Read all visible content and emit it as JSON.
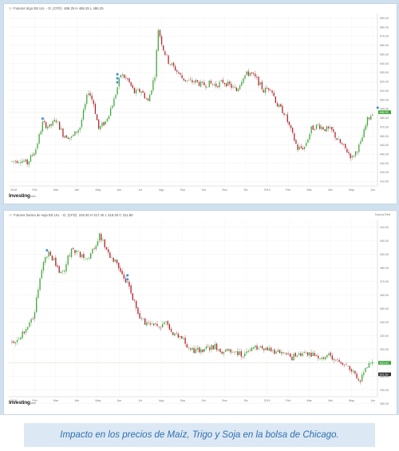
{
  "caption": "Impacto en los precios de Maíz, Trigo y Soja en la bolsa de Chicago.",
  "colors": {
    "up": "#3fa63a",
    "down": "#b0222a",
    "tag_green": "#3fa63a",
    "tag_dark": "#333333",
    "marker": "#4e8fd6",
    "frame": "#cfe0ef",
    "caption_text": "#2f6fae"
  },
  "chart_data": [
    {
      "type": "candlestick",
      "header": "Futuros trigo EE.UU. - D, (CFD)",
      "ohlc_text": "486.25 H 486.25 L 486.25",
      "brand": "Investing",
      "brand_suffix": ".com",
      "x_tick_labels": [
        "2018",
        "Feb",
        "Mar",
        "Abr",
        "May",
        "Jun",
        "Jul",
        "Ago",
        "Sep",
        "Oct",
        "Nov",
        "Dic",
        "2019",
        "Feb",
        "Mar",
        "Abr",
        "May",
        "Jun"
      ],
      "y_tick_labels": [
        "590.00",
        "580.00",
        "570.00",
        "560.00",
        "550.00",
        "540.00",
        "530.00",
        "520.00",
        "510.00",
        "500.00",
        "490.00",
        "480.00",
        "470.00",
        "460.00",
        "450.00",
        "440.00",
        "430.00",
        "420.00",
        "410.00"
      ],
      "ylim": [
        405,
        595
      ],
      "last_price": "486.25",
      "secondary_tag": "",
      "events": [
        {
          "index": 18,
          "stack": 1
        },
        {
          "index": 62,
          "stack": 3
        },
        {
          "index": 215,
          "stack": 1
        }
      ],
      "trend": [
        [
          0,
          432
        ],
        [
          5,
          434
        ],
        [
          9,
          430
        ],
        [
          14,
          446
        ],
        [
          18,
          474
        ],
        [
          22,
          470
        ],
        [
          26,
          478
        ],
        [
          30,
          462
        ],
        [
          35,
          458
        ],
        [
          40,
          470
        ],
        [
          45,
          510
        ],
        [
          48,
          496
        ],
        [
          51,
          468
        ],
        [
          55,
          476
        ],
        [
          60,
          500
        ],
        [
          64,
          528
        ],
        [
          68,
          522
        ],
        [
          72,
          508
        ],
        [
          76,
          510
        ],
        [
          80,
          498
        ],
        [
          84,
          528
        ],
        [
          86,
          578
        ],
        [
          89,
          556
        ],
        [
          92,
          542
        ],
        [
          96,
          534
        ],
        [
          100,
          524
        ],
        [
          104,
          520
        ],
        [
          108,
          520
        ],
        [
          112,
          516
        ],
        [
          116,
          518
        ],
        [
          120,
          516
        ],
        [
          124,
          520
        ],
        [
          128,
          516
        ],
        [
          132,
          510
        ],
        [
          136,
          526
        ],
        [
          140,
          530
        ],
        [
          144,
          522
        ],
        [
          148,
          510
        ],
        [
          152,
          514
        ],
        [
          156,
          494
        ],
        [
          160,
          486
        ],
        [
          164,
          466
        ],
        [
          168,
          446
        ],
        [
          172,
          448
        ],
        [
          176,
          468
        ],
        [
          180,
          472
        ],
        [
          184,
          468
        ],
        [
          188,
          466
        ],
        [
          192,
          454
        ],
        [
          196,
          446
        ],
        [
          200,
          436
        ],
        [
          205,
          452
        ],
        [
          209,
          478
        ],
        [
          212,
          486
        ]
      ],
      "seed": 7
    },
    {
      "type": "candlestick",
      "header": "Futuros harina de soja EE.UU. - D, (CFD)",
      "ohlc_text": "316.30 H 317.40 L 316.30 C 311.80",
      "legend_right": "Nueva Red",
      "brand": "Investing",
      "brand_suffix": ".com",
      "x_tick_labels": [
        "2018",
        "Feb",
        "Mar",
        "Abr",
        "May",
        "Jun",
        "Jul",
        "Ago",
        "Sep",
        "Oct",
        "Nov",
        "Dic",
        "2019",
        "Feb",
        "Mar",
        "Abr",
        "May",
        "Jun"
      ],
      "y_tick_labels": [
        "410.00",
        "400.00",
        "390.00",
        "380.00",
        "370.00",
        "360.00",
        "350.00",
        "340.00",
        "330.00",
        "320.00",
        "310.00",
        "300.00",
        "290.00",
        "280.00"
      ],
      "ylim": [
        285,
        415
      ],
      "last_price": "310.00",
      "secondary_tag": "301.50",
      "events": [
        {
          "index": 20,
          "stack": 1
        },
        {
          "index": 66,
          "stack": 2
        }
      ],
      "trend": [
        [
          0,
          325
        ],
        [
          4,
          328
        ],
        [
          8,
          336
        ],
        [
          12,
          342
        ],
        [
          15,
          364
        ],
        [
          18,
          384
        ],
        [
          21,
          392
        ],
        [
          24,
          385
        ],
        [
          27,
          376
        ],
        [
          30,
          380
        ],
        [
          34,
          394
        ],
        [
          38,
          390
        ],
        [
          42,
          386
        ],
        [
          46,
          392
        ],
        [
          50,
          404
        ],
        [
          53,
          396
        ],
        [
          56,
          388
        ],
        [
          60,
          384
        ],
        [
          64,
          374
        ],
        [
          68,
          362
        ],
        [
          72,
          346
        ],
        [
          76,
          340
        ],
        [
          80,
          338
        ],
        [
          84,
          337
        ],
        [
          88,
          340
        ],
        [
          92,
          332
        ],
        [
          96,
          330
        ],
        [
          100,
          322
        ],
        [
          104,
          318
        ],
        [
          108,
          320
        ],
        [
          112,
          320
        ],
        [
          116,
          322
        ],
        [
          120,
          318
        ],
        [
          124,
          318
        ],
        [
          128,
          318
        ],
        [
          132,
          316
        ],
        [
          136,
          320
        ],
        [
          140,
          322
        ],
        [
          144,
          321
        ],
        [
          148,
          319
        ],
        [
          152,
          318
        ],
        [
          156,
          316
        ],
        [
          160,
          314
        ],
        [
          164,
          316
        ],
        [
          168,
          317
        ],
        [
          172,
          316
        ],
        [
          176,
          314
        ],
        [
          180,
          316
        ],
        [
          184,
          312
        ],
        [
          188,
          310
        ],
        [
          192,
          306
        ],
        [
          196,
          301
        ],
        [
          199,
          298
        ],
        [
          202,
          308
        ],
        [
          206,
          310
        ]
      ],
      "seed": 19
    }
  ]
}
